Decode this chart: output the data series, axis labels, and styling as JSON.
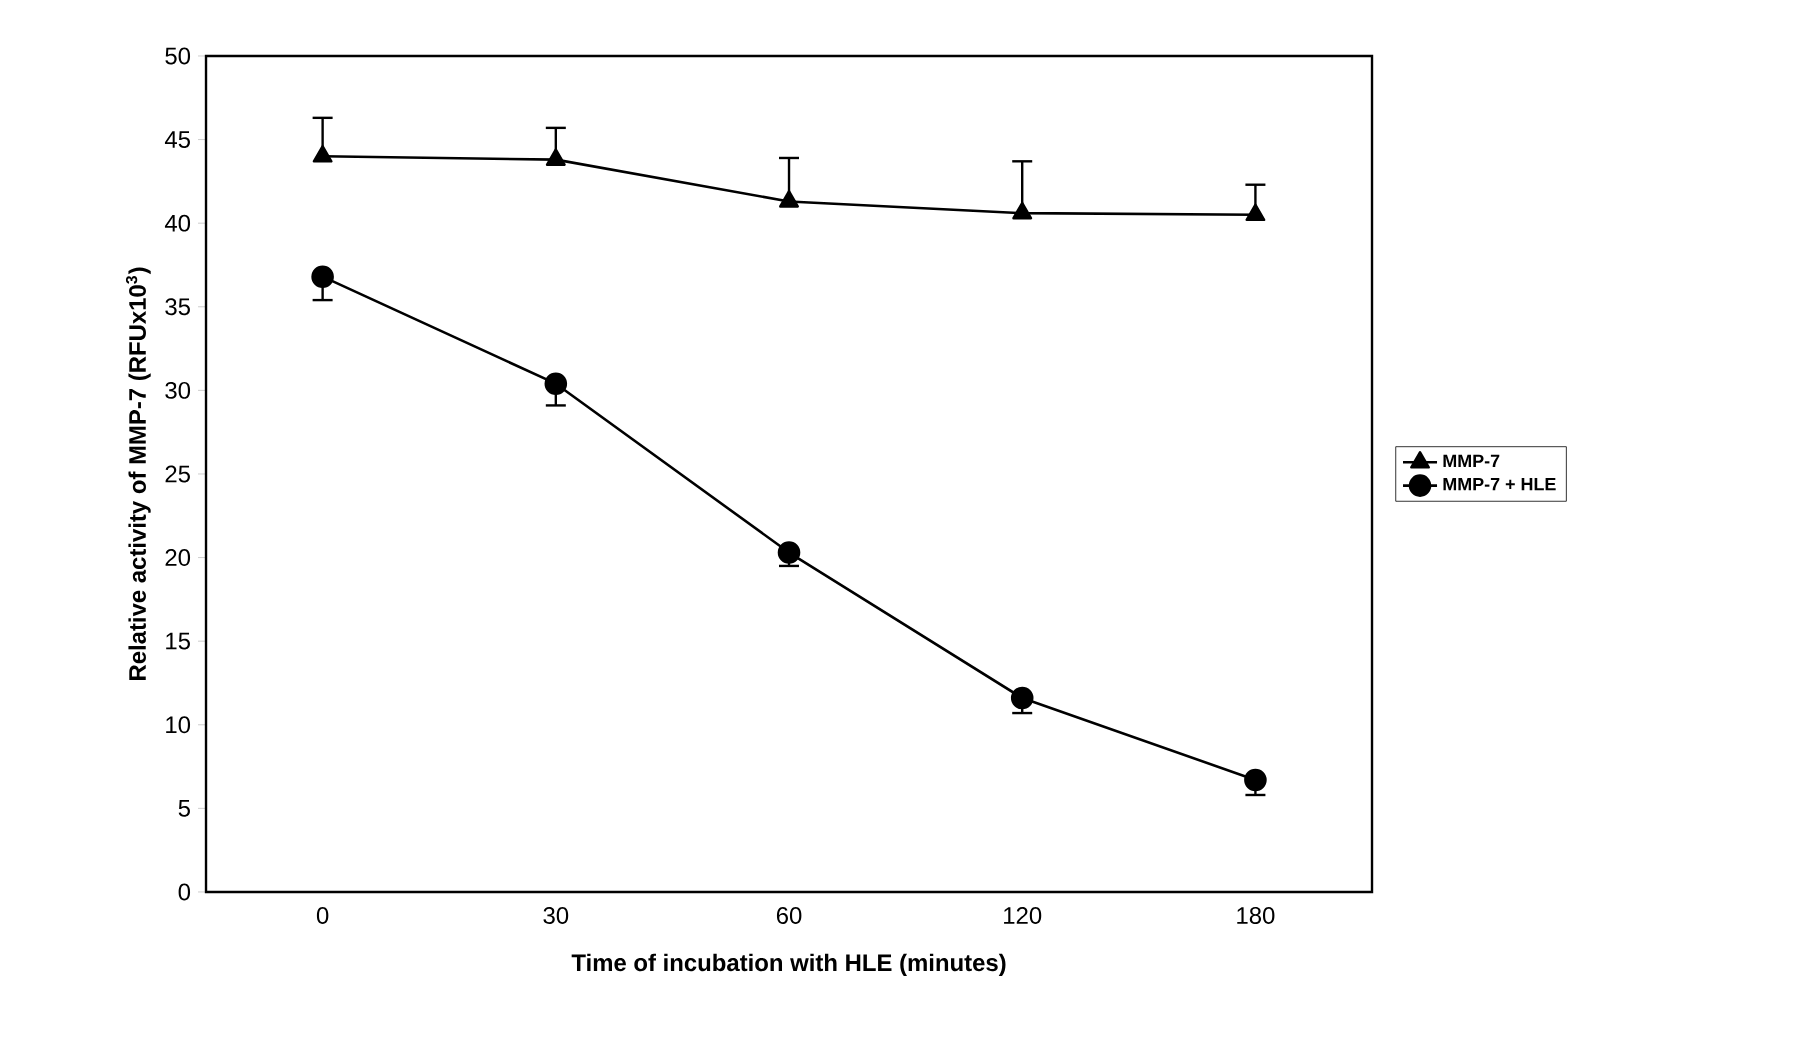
{
  "chart_data": {
    "type": "line",
    "xlabel": "Time of incubation with HLE (minutes)",
    "ylabel": "Relative activity of MMP-7 (RFUx10$^{3}$)",
    "categories": [
      "0",
      "30",
      "60",
      "120",
      "180"
    ],
    "series": [
      {
        "name": "MMP-7",
        "color": "#000000",
        "marker": "triangle",
        "values": [
          44.0,
          43.8,
          41.3,
          40.6,
          40.5
        ],
        "errors": [
          [
            44.0,
            46.3
          ],
          [
            43.8,
            45.7
          ],
          [
            41.3,
            43.9
          ],
          [
            40.6,
            43.7
          ],
          [
            40.5,
            42.3
          ]
        ]
      },
      {
        "name": "MMP-7 + HLE",
        "color": "#000000",
        "marker": "circle",
        "values": [
          36.8,
          30.4,
          20.3,
          11.6,
          6.7
        ],
        "errors": [
          [
            35.4,
            36.8
          ],
          [
            29.1,
            30.4
          ],
          [
            19.5,
            20.3
          ],
          [
            10.7,
            11.6
          ],
          [
            5.8,
            6.7
          ]
        ]
      }
    ],
    "ylim": [
      0,
      50
    ],
    "yticks": [
      0,
      5,
      10,
      15,
      20,
      25,
      30,
      35,
      40,
      45,
      50
    ],
    "grid": false,
    "legend": "right",
    "line_style": "solid"
  }
}
